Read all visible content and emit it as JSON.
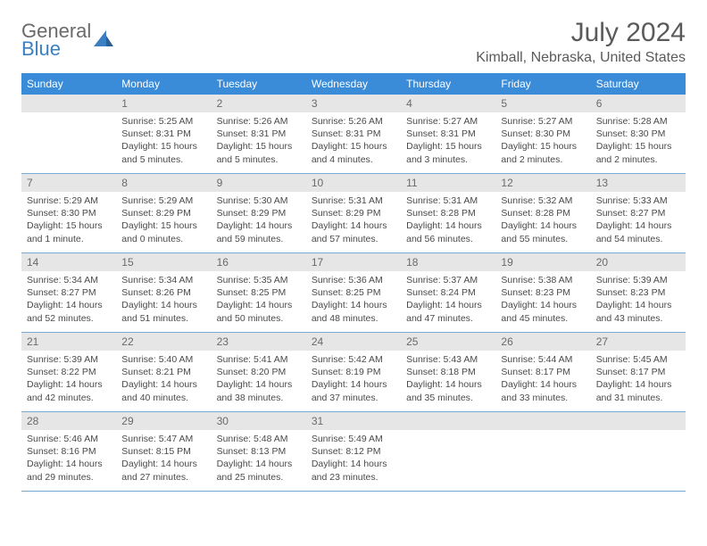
{
  "brand": {
    "word1": "General",
    "word2": "Blue"
  },
  "title": "July 2024",
  "location": "Kimball, Nebraska, United States",
  "colors": {
    "header_bar": "#3a8bd8",
    "cell_rule": "#7aa8d4",
    "daynum_bg": "#e6e6e6",
    "text": "#4a4a4a",
    "brand_gray": "#6a6a6a",
    "brand_blue": "#3a7fc4"
  },
  "days_of_week": [
    "Sunday",
    "Monday",
    "Tuesday",
    "Wednesday",
    "Thursday",
    "Friday",
    "Saturday"
  ],
  "weeks": [
    [
      {
        "n": "",
        "lines": []
      },
      {
        "n": "1",
        "lines": [
          "Sunrise: 5:25 AM",
          "Sunset: 8:31 PM",
          "Daylight: 15 hours",
          "and 5 minutes."
        ]
      },
      {
        "n": "2",
        "lines": [
          "Sunrise: 5:26 AM",
          "Sunset: 8:31 PM",
          "Daylight: 15 hours",
          "and 5 minutes."
        ]
      },
      {
        "n": "3",
        "lines": [
          "Sunrise: 5:26 AM",
          "Sunset: 8:31 PM",
          "Daylight: 15 hours",
          "and 4 minutes."
        ]
      },
      {
        "n": "4",
        "lines": [
          "Sunrise: 5:27 AM",
          "Sunset: 8:31 PM",
          "Daylight: 15 hours",
          "and 3 minutes."
        ]
      },
      {
        "n": "5",
        "lines": [
          "Sunrise: 5:27 AM",
          "Sunset: 8:30 PM",
          "Daylight: 15 hours",
          "and 2 minutes."
        ]
      },
      {
        "n": "6",
        "lines": [
          "Sunrise: 5:28 AM",
          "Sunset: 8:30 PM",
          "Daylight: 15 hours",
          "and 2 minutes."
        ]
      }
    ],
    [
      {
        "n": "7",
        "lines": [
          "Sunrise: 5:29 AM",
          "Sunset: 8:30 PM",
          "Daylight: 15 hours",
          "and 1 minute."
        ]
      },
      {
        "n": "8",
        "lines": [
          "Sunrise: 5:29 AM",
          "Sunset: 8:29 PM",
          "Daylight: 15 hours",
          "and 0 minutes."
        ]
      },
      {
        "n": "9",
        "lines": [
          "Sunrise: 5:30 AM",
          "Sunset: 8:29 PM",
          "Daylight: 14 hours",
          "and 59 minutes."
        ]
      },
      {
        "n": "10",
        "lines": [
          "Sunrise: 5:31 AM",
          "Sunset: 8:29 PM",
          "Daylight: 14 hours",
          "and 57 minutes."
        ]
      },
      {
        "n": "11",
        "lines": [
          "Sunrise: 5:31 AM",
          "Sunset: 8:28 PM",
          "Daylight: 14 hours",
          "and 56 minutes."
        ]
      },
      {
        "n": "12",
        "lines": [
          "Sunrise: 5:32 AM",
          "Sunset: 8:28 PM",
          "Daylight: 14 hours",
          "and 55 minutes."
        ]
      },
      {
        "n": "13",
        "lines": [
          "Sunrise: 5:33 AM",
          "Sunset: 8:27 PM",
          "Daylight: 14 hours",
          "and 54 minutes."
        ]
      }
    ],
    [
      {
        "n": "14",
        "lines": [
          "Sunrise: 5:34 AM",
          "Sunset: 8:27 PM",
          "Daylight: 14 hours",
          "and 52 minutes."
        ]
      },
      {
        "n": "15",
        "lines": [
          "Sunrise: 5:34 AM",
          "Sunset: 8:26 PM",
          "Daylight: 14 hours",
          "and 51 minutes."
        ]
      },
      {
        "n": "16",
        "lines": [
          "Sunrise: 5:35 AM",
          "Sunset: 8:25 PM",
          "Daylight: 14 hours",
          "and 50 minutes."
        ]
      },
      {
        "n": "17",
        "lines": [
          "Sunrise: 5:36 AM",
          "Sunset: 8:25 PM",
          "Daylight: 14 hours",
          "and 48 minutes."
        ]
      },
      {
        "n": "18",
        "lines": [
          "Sunrise: 5:37 AM",
          "Sunset: 8:24 PM",
          "Daylight: 14 hours",
          "and 47 minutes."
        ]
      },
      {
        "n": "19",
        "lines": [
          "Sunrise: 5:38 AM",
          "Sunset: 8:23 PM",
          "Daylight: 14 hours",
          "and 45 minutes."
        ]
      },
      {
        "n": "20",
        "lines": [
          "Sunrise: 5:39 AM",
          "Sunset: 8:23 PM",
          "Daylight: 14 hours",
          "and 43 minutes."
        ]
      }
    ],
    [
      {
        "n": "21",
        "lines": [
          "Sunrise: 5:39 AM",
          "Sunset: 8:22 PM",
          "Daylight: 14 hours",
          "and 42 minutes."
        ]
      },
      {
        "n": "22",
        "lines": [
          "Sunrise: 5:40 AM",
          "Sunset: 8:21 PM",
          "Daylight: 14 hours",
          "and 40 minutes."
        ]
      },
      {
        "n": "23",
        "lines": [
          "Sunrise: 5:41 AM",
          "Sunset: 8:20 PM",
          "Daylight: 14 hours",
          "and 38 minutes."
        ]
      },
      {
        "n": "24",
        "lines": [
          "Sunrise: 5:42 AM",
          "Sunset: 8:19 PM",
          "Daylight: 14 hours",
          "and 37 minutes."
        ]
      },
      {
        "n": "25",
        "lines": [
          "Sunrise: 5:43 AM",
          "Sunset: 8:18 PM",
          "Daylight: 14 hours",
          "and 35 minutes."
        ]
      },
      {
        "n": "26",
        "lines": [
          "Sunrise: 5:44 AM",
          "Sunset: 8:17 PM",
          "Daylight: 14 hours",
          "and 33 minutes."
        ]
      },
      {
        "n": "27",
        "lines": [
          "Sunrise: 5:45 AM",
          "Sunset: 8:17 PM",
          "Daylight: 14 hours",
          "and 31 minutes."
        ]
      }
    ],
    [
      {
        "n": "28",
        "lines": [
          "Sunrise: 5:46 AM",
          "Sunset: 8:16 PM",
          "Daylight: 14 hours",
          "and 29 minutes."
        ]
      },
      {
        "n": "29",
        "lines": [
          "Sunrise: 5:47 AM",
          "Sunset: 8:15 PM",
          "Daylight: 14 hours",
          "and 27 minutes."
        ]
      },
      {
        "n": "30",
        "lines": [
          "Sunrise: 5:48 AM",
          "Sunset: 8:13 PM",
          "Daylight: 14 hours",
          "and 25 minutes."
        ]
      },
      {
        "n": "31",
        "lines": [
          "Sunrise: 5:49 AM",
          "Sunset: 8:12 PM",
          "Daylight: 14 hours",
          "and 23 minutes."
        ]
      },
      {
        "n": "",
        "lines": []
      },
      {
        "n": "",
        "lines": []
      },
      {
        "n": "",
        "lines": []
      }
    ]
  ]
}
